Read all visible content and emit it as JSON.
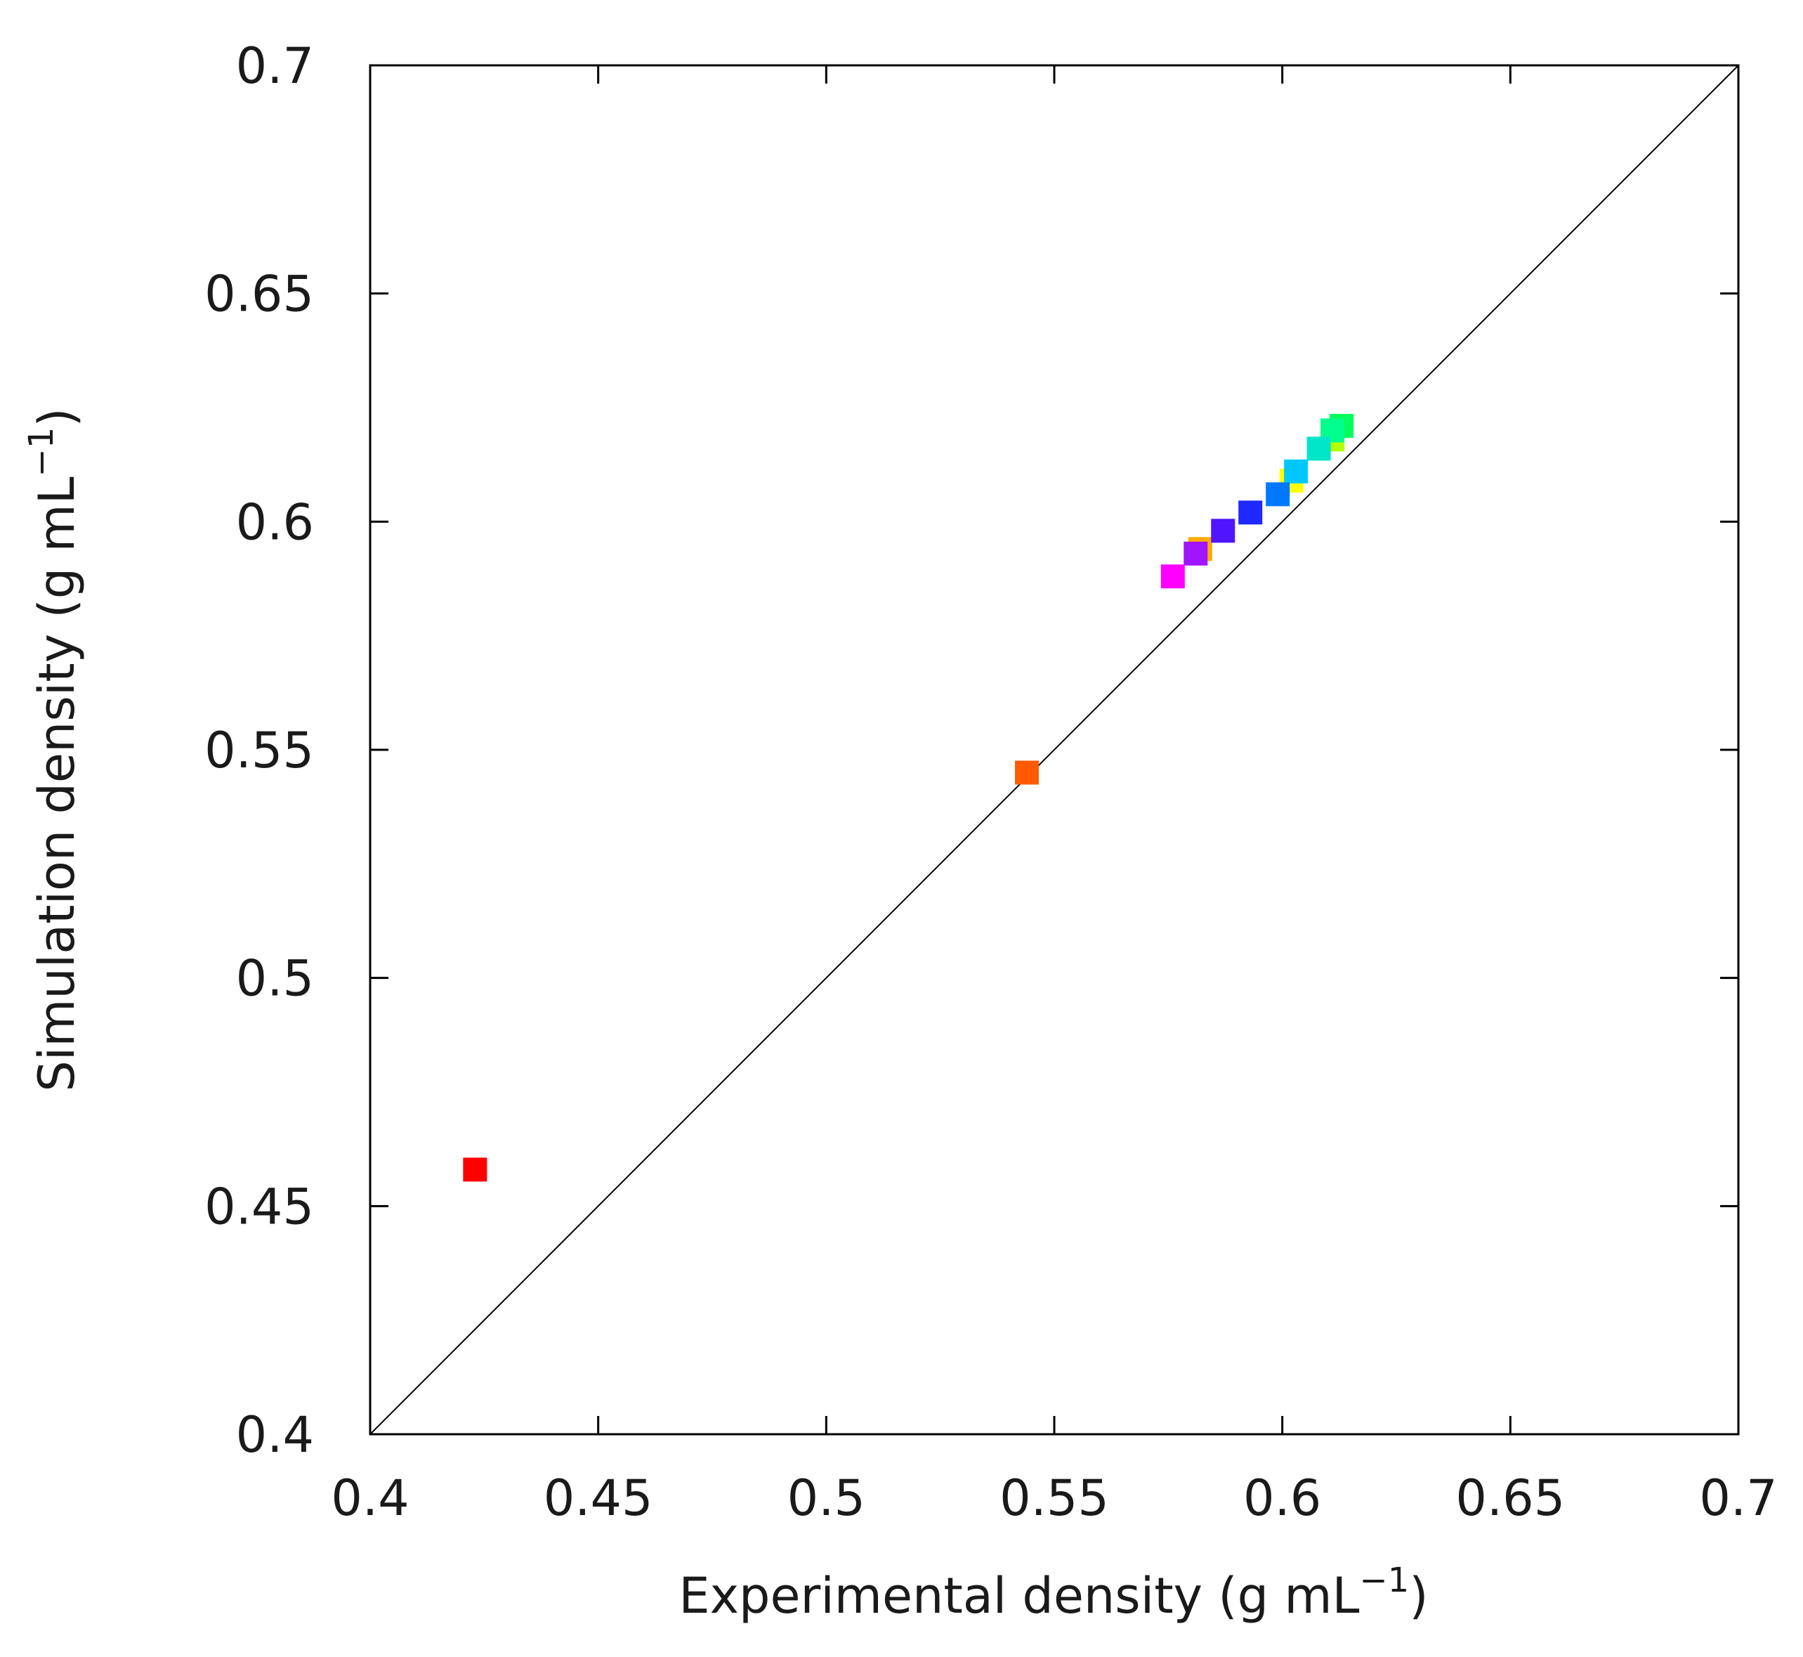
{
  "chart_data": {
    "type": "scatter",
    "title": "",
    "xlabel": "Experimental density (g mL",
    "xlabel_superscript": "−1",
    "xlabel_close": ")",
    "ylabel": "Simulation density (g mL",
    "ylabel_superscript": "−1",
    "ylabel_close": ")",
    "xlim": [
      0.4,
      0.7
    ],
    "ylim": [
      0.4,
      0.7
    ],
    "grid": false,
    "legend": "none",
    "x_ticks": [
      0.4,
      0.45,
      0.5,
      0.55,
      0.6,
      0.65,
      0.7
    ],
    "x_tick_labels": [
      "0.4",
      "0.45",
      "0.5",
      "0.55",
      "0.6",
      "0.65",
      "0.7"
    ],
    "y_ticks": [
      0.4,
      0.45,
      0.5,
      0.55,
      0.6,
      0.65,
      0.7
    ],
    "y_tick_labels": [
      "0.4",
      "0.45",
      "0.5",
      "0.55",
      "0.6",
      "0.65",
      "0.7"
    ],
    "reference_line": {
      "name": "y = x",
      "from": [
        0.4,
        0.4
      ],
      "to": [
        0.7,
        0.7
      ],
      "color": "#000000"
    },
    "points": [
      {
        "x": 0.423,
        "y": 0.458,
        "color": "#ff0000"
      },
      {
        "x": 0.544,
        "y": 0.545,
        "color": "#ff5a00"
      },
      {
        "x": 0.582,
        "y": 0.594,
        "color": "#ffaa00"
      },
      {
        "x": 0.602,
        "y": 0.609,
        "color": "#ffff00"
      },
      {
        "x": 0.611,
        "y": 0.618,
        "color": "#b4ff00"
      },
      {
        "x": 0.613,
        "y": 0.621,
        "color": "#00ff5a"
      },
      {
        "x": 0.611,
        "y": 0.62,
        "color": "#00ff8c"
      },
      {
        "x": 0.608,
        "y": 0.616,
        "color": "#00e6c8"
      },
      {
        "x": 0.603,
        "y": 0.611,
        "color": "#00c8ff"
      },
      {
        "x": 0.599,
        "y": 0.606,
        "color": "#0078ff"
      },
      {
        "x": 0.593,
        "y": 0.602,
        "color": "#1e28ff"
      },
      {
        "x": 0.587,
        "y": 0.598,
        "color": "#5014ff"
      },
      {
        "x": 0.581,
        "y": 0.593,
        "color": "#a014ff"
      },
      {
        "x": 0.576,
        "y": 0.588,
        "color": "#ff00ff"
      }
    ]
  }
}
